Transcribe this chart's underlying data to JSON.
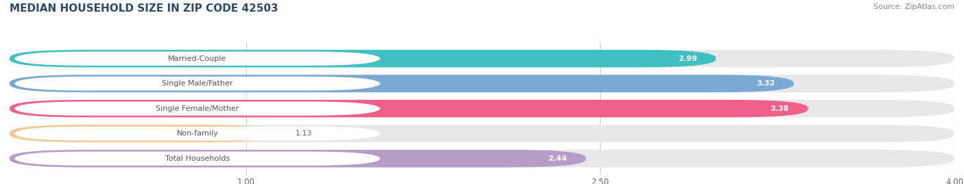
{
  "title": "MEDIAN HOUSEHOLD SIZE IN ZIP CODE 42503",
  "source": "Source: ZipAtlas.com",
  "categories": [
    "Married-Couple",
    "Single Male/Father",
    "Single Female/Mother",
    "Non-family",
    "Total Households"
  ],
  "values": [
    2.99,
    3.32,
    3.38,
    1.13,
    2.44
  ],
  "bar_colors": [
    "#40c0c0",
    "#7aaad4",
    "#f0608a",
    "#f5c897",
    "#b89cc8"
  ],
  "bar_bg_color": "#e8e8e8",
  "xlim": [
    0.0,
    4.0
  ],
  "xticks": [
    1.0,
    2.5,
    4.0
  ],
  "label_pill_color": "#ffffff",
  "label_text_color": "#555555",
  "value_inside_color": "#ffffff",
  "value_outside_color": "#666666",
  "background_color": "#ffffff",
  "value_threshold": 1.5,
  "title_color": "#2c4a6e",
  "source_color": "#888888"
}
